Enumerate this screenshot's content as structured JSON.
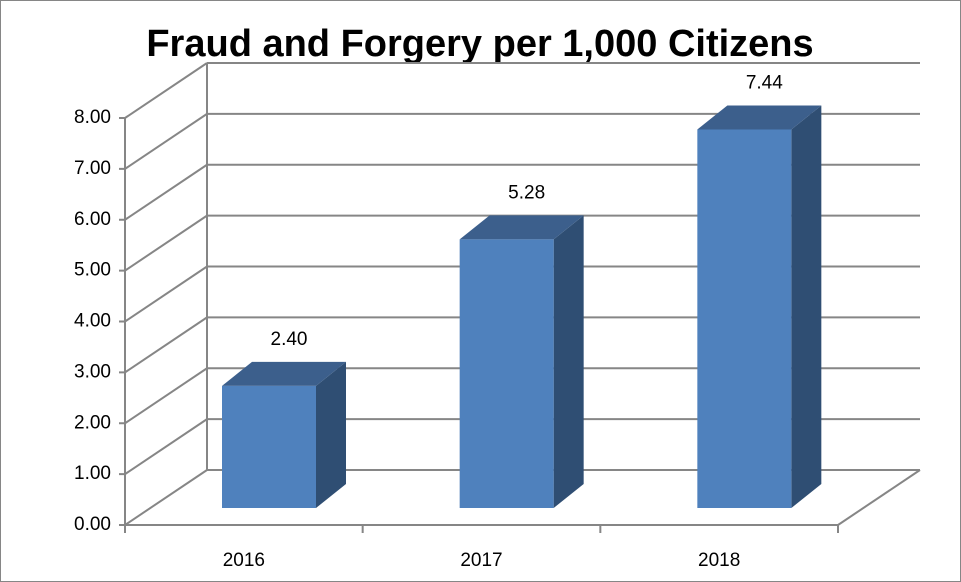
{
  "chart_data": {
    "type": "bar3d",
    "title": "Fraud and Forgery per 1,000 Citizens",
    "categories": [
      "2016",
      "2017",
      "2018"
    ],
    "values": [
      2.4,
      5.28,
      7.44
    ],
    "value_labels": [
      "2.40",
      "5.28",
      "7.44"
    ],
    "color": "#4f81bd",
    "ylim": [
      0,
      8
    ],
    "yticks": [
      {
        "value": 0,
        "label": "0.00"
      },
      {
        "value": 1,
        "label": "1.00"
      },
      {
        "value": 2,
        "label": "2.00"
      },
      {
        "value": 3,
        "label": "3.00"
      },
      {
        "value": 4,
        "label": "4.00"
      },
      {
        "value": 5,
        "label": "5.00"
      },
      {
        "value": 6,
        "label": "6.00"
      },
      {
        "value": 7,
        "label": "7.00"
      },
      {
        "value": 8,
        "label": "8.00"
      }
    ],
    "grid": true
  }
}
